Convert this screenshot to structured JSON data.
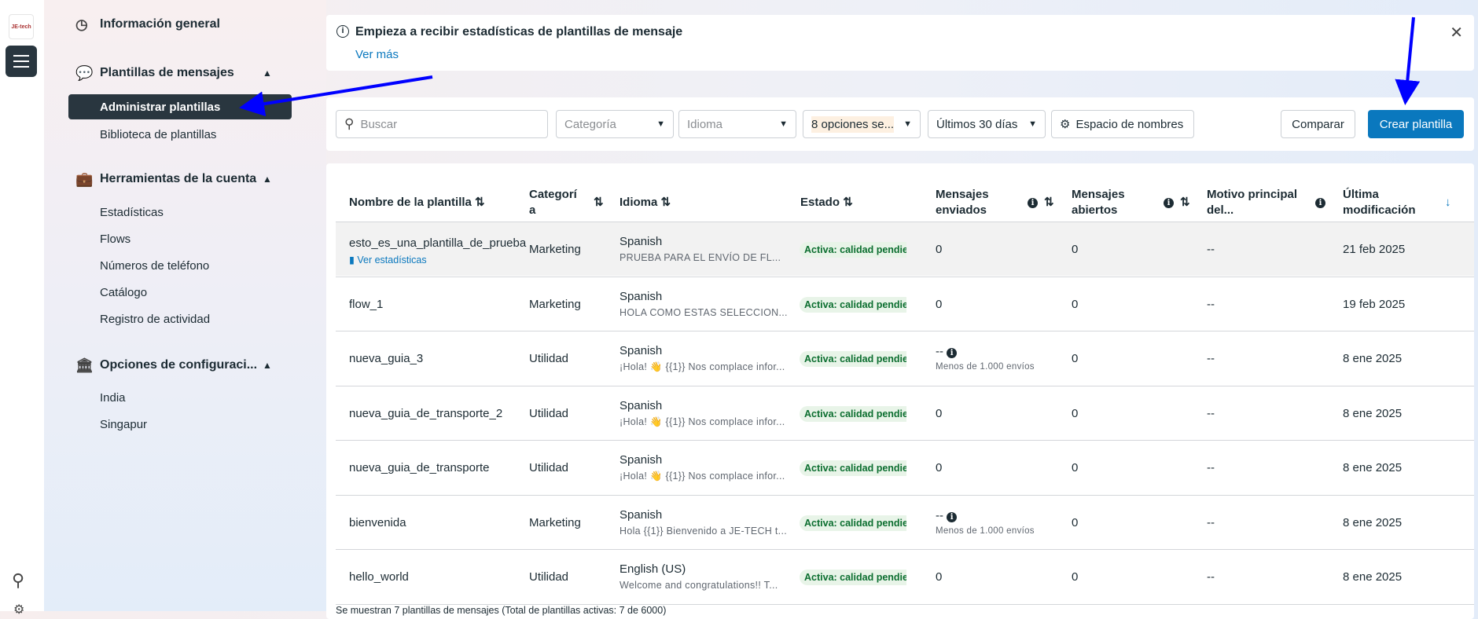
{
  "rail": {
    "logo_text": "JE-tech"
  },
  "sidebar": {
    "overview": "Información general",
    "templates": {
      "label": "Plantillas de mensajes",
      "items": [
        "Administrar plantillas",
        "Biblioteca de plantillas"
      ]
    },
    "tools": {
      "label": "Herramientas de la cuenta",
      "items": [
        "Estadísticas",
        "Flows",
        "Números de teléfono",
        "Catálogo",
        "Registro de actividad"
      ]
    },
    "config": {
      "label": "Opciones de configuraci...",
      "items": [
        "India",
        "Singapur"
      ]
    }
  },
  "banner": {
    "title": "Empieza a recibir estadísticas de plantillas de mensaje",
    "link": "Ver más"
  },
  "filters": {
    "search_placeholder": "Buscar",
    "category": "Categoría",
    "language": "Idioma",
    "status": "8 opciones se...",
    "period": "Últimos 30 días",
    "namespace": "Espacio de nombres",
    "compare": "Comparar",
    "create": "Crear plantilla"
  },
  "table": {
    "headers": [
      "Nombre de la plantilla",
      "Categorí a",
      "Idioma",
      "Estado",
      "Mensajes enviados",
      "Mensajes abiertos",
      "Motivo principal del...",
      "Última modificación"
    ],
    "rows": [
      {
        "name": "esto_es_una_plantilla_de_prueba",
        "link": "Ver estadísticas",
        "category": "Marketing",
        "lang": "Spanish",
        "preview": "PRUEBA PARA EL ENVÍO DE FL...",
        "status": "Activa: calidad pendiente",
        "sent": "0",
        "sent_note": "",
        "opened": "0",
        "reason": "--",
        "date": "21 feb 2025"
      },
      {
        "name": "flow_1",
        "link": "",
        "category": "Marketing",
        "lang": "Spanish",
        "preview": "HOLA COMO ESTAS SELECCION...",
        "status": "Activa: calidad pendiente",
        "sent": "0",
        "sent_note": "",
        "opened": "0",
        "reason": "--",
        "date": "19 feb 2025"
      },
      {
        "name": "nueva_guia_3",
        "link": "",
        "category": "Utilidad",
        "lang": "Spanish",
        "preview": "¡Hola! 👋 {{1}} Nos complace infor...",
        "status": "Activa: calidad pendiente",
        "sent": "--",
        "sent_note": "Menos de 1.000 envíos",
        "opened": "0",
        "reason": "--",
        "date": "8 ene 2025"
      },
      {
        "name": "nueva_guia_de_transporte_2",
        "link": "",
        "category": "Utilidad",
        "lang": "Spanish",
        "preview": "¡Hola! 👋 {{1}} Nos complace infor...",
        "status": "Activa: calidad pendiente",
        "sent": "0",
        "sent_note": "",
        "opened": "0",
        "reason": "--",
        "date": "8 ene 2025"
      },
      {
        "name": "nueva_guia_de_transporte",
        "link": "",
        "category": "Utilidad",
        "lang": "Spanish",
        "preview": "¡Hola! 👋 {{1}} Nos complace infor...",
        "status": "Activa: calidad pendiente",
        "sent": "0",
        "sent_note": "",
        "opened": "0",
        "reason": "--",
        "date": "8 ene 2025"
      },
      {
        "name": "bienvenida",
        "link": "",
        "category": "Marketing",
        "lang": "Spanish",
        "preview": "Hola {{1}} Bienvenido a JE-TECH t...",
        "status": "Activa: calidad pendiente",
        "sent": "--",
        "sent_note": "Menos de 1.000 envíos",
        "opened": "0",
        "reason": "--",
        "date": "8 ene 2025"
      },
      {
        "name": "hello_world",
        "link": "",
        "category": "Utilidad",
        "lang": "English (US)",
        "preview": "Welcome and congratulations!! T...",
        "status": "Activa: calidad pendiente",
        "sent": "0",
        "sent_note": "",
        "opened": "0",
        "reason": "--",
        "date": "8 ene 2025"
      }
    ],
    "footer": "Se muestran 7 plantillas de mensajes (Total de plantillas activas: 7 de 6000)"
  },
  "colors": {
    "primary": "#0a78be",
    "dark": "#29363f",
    "badge_bg": "#e8f4e8",
    "badge_text": "#0b6e2f",
    "annotation_arrow": "#0000ff"
  }
}
